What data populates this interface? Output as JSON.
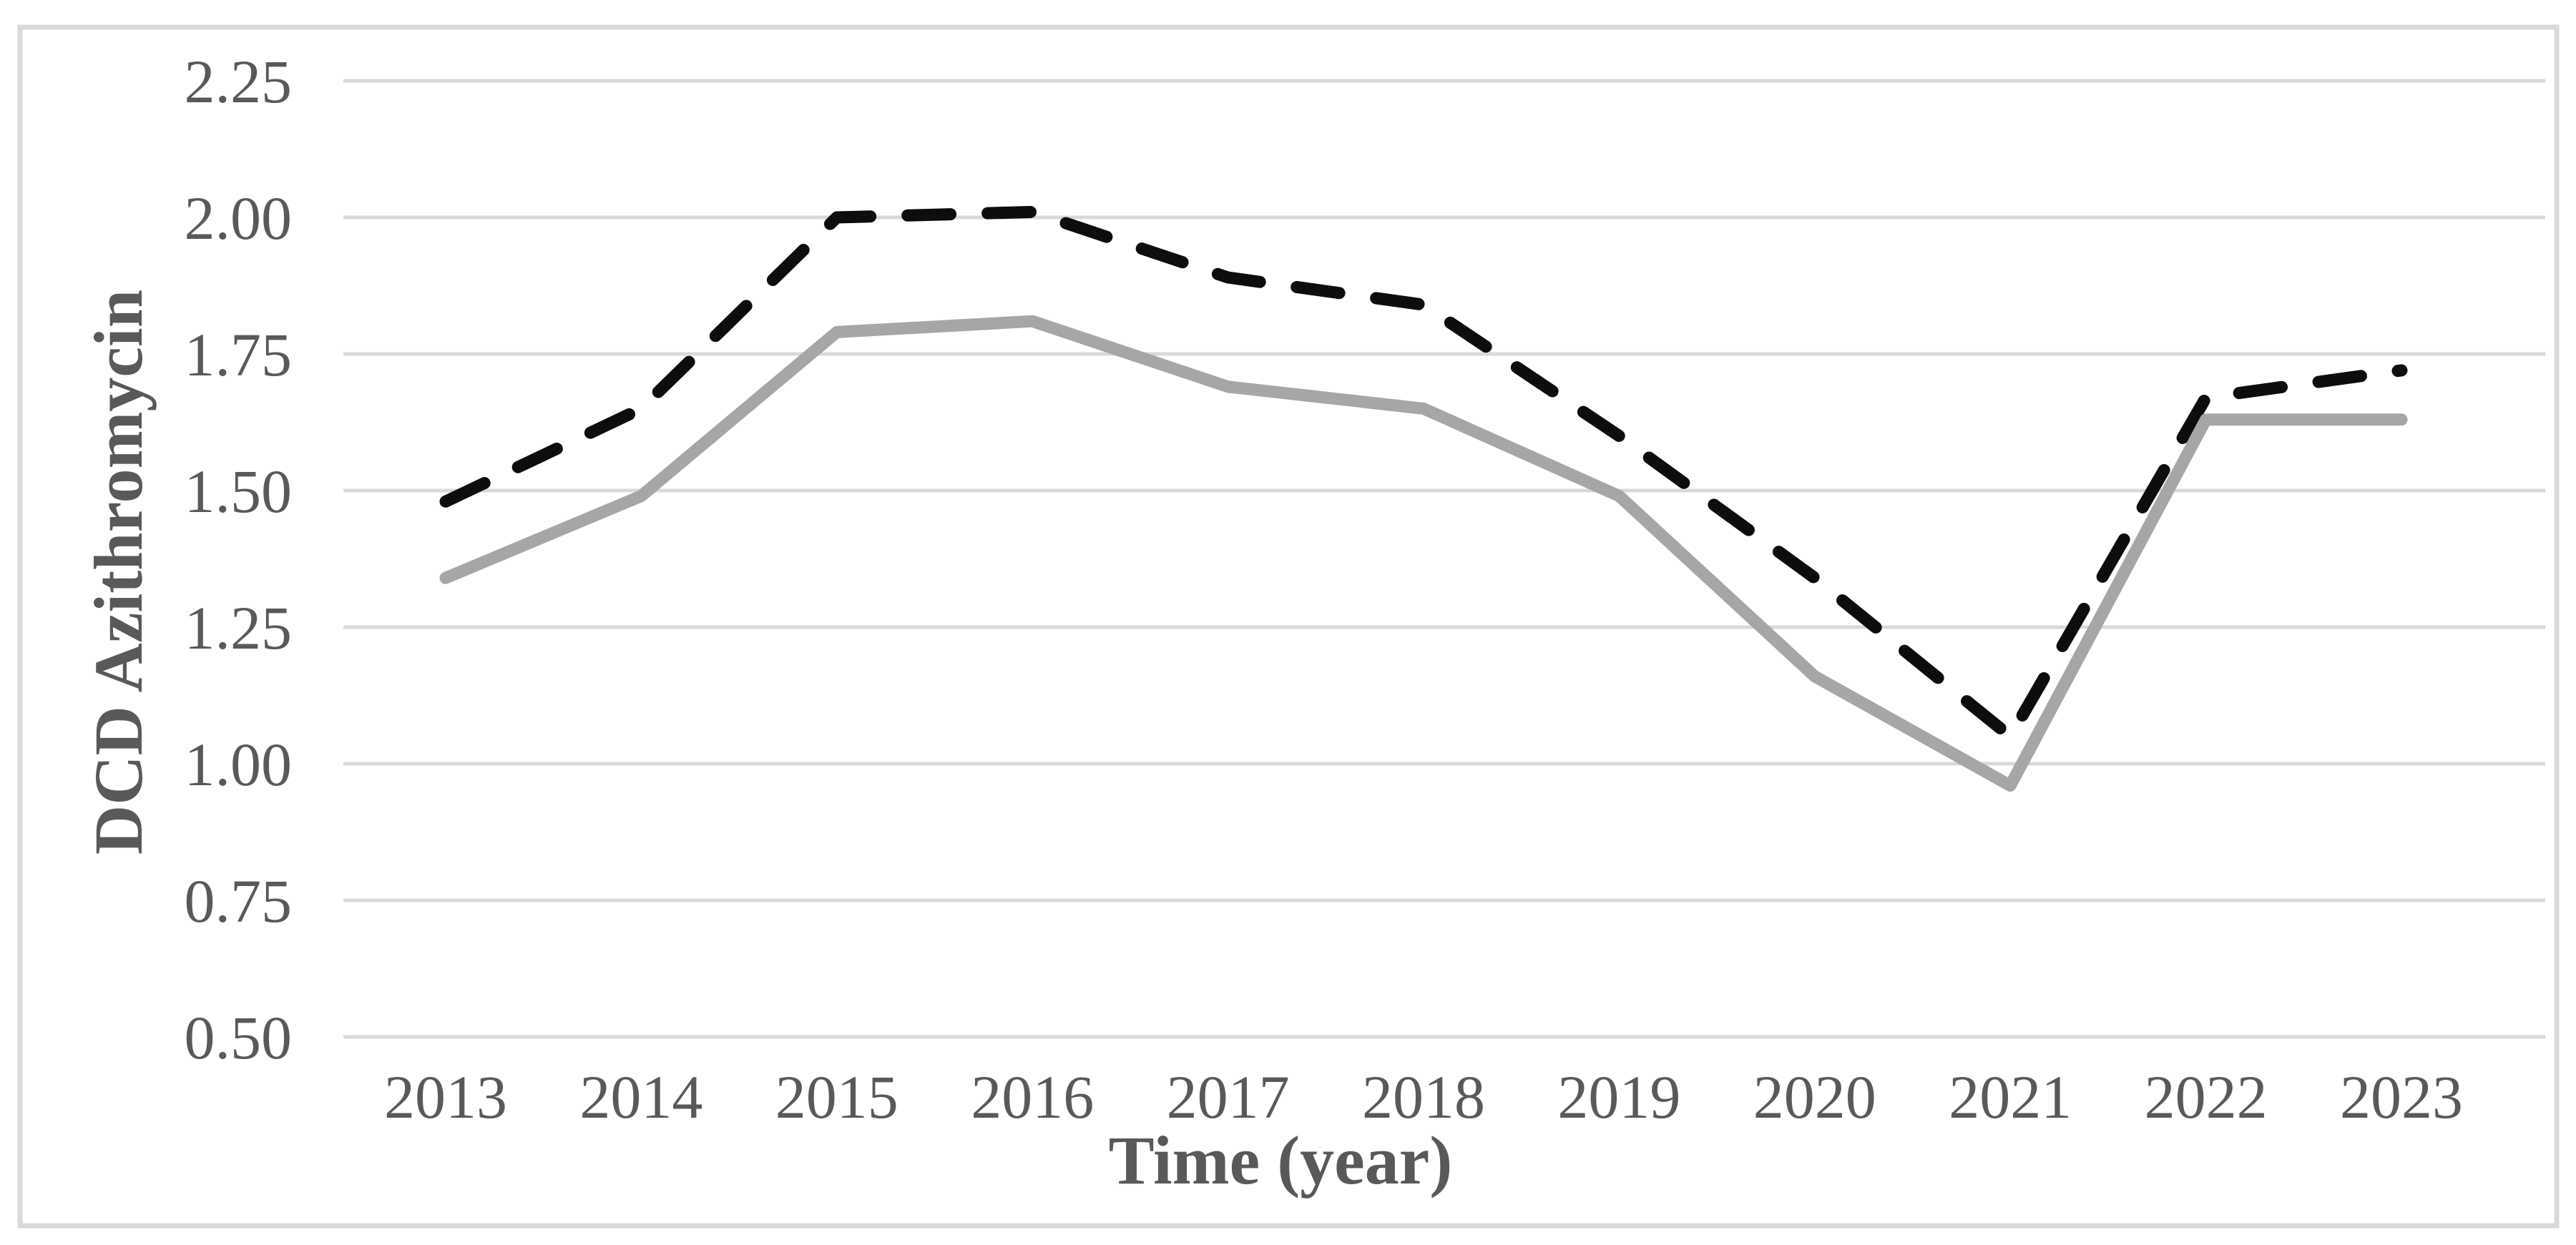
{
  "figure": {
    "background_color": "#ffffff",
    "border_color": "#d9d9d9",
    "text_color": "#595959"
  },
  "chart_data": {
    "type": "line",
    "title": "",
    "xlabel": "Time (year)",
    "ylabel": "DCD Azithromycin",
    "categories": [
      "2013",
      "2014",
      "2015",
      "2016",
      "2017",
      "2018",
      "2019",
      "2020",
      "2021",
      "2022",
      "2023"
    ],
    "series": [
      {
        "name": "dashed-black-series",
        "style": "dashed",
        "color": "#0d0d0d",
        "values": [
          1.48,
          1.65,
          2.0,
          2.01,
          1.89,
          1.84,
          1.6,
          1.34,
          1.05,
          1.67,
          1.72
        ]
      },
      {
        "name": "solid-gray-series",
        "style": "solid",
        "color": "#a6a6a6",
        "values": [
          1.34,
          1.49,
          1.79,
          1.81,
          1.69,
          1.65,
          1.49,
          1.16,
          0.96,
          1.63,
          1.63
        ]
      }
    ],
    "ylim": [
      0.5,
      2.25
    ],
    "ytick_step": 0.25,
    "ytick_labels": [
      "2.25",
      "2.00",
      "1.75",
      "1.50",
      "1.25",
      "1.00",
      "0.75",
      "0.50"
    ],
    "grid": "horizontal",
    "gridline_color": "#d9d9d9",
    "legend_position": "none"
  }
}
